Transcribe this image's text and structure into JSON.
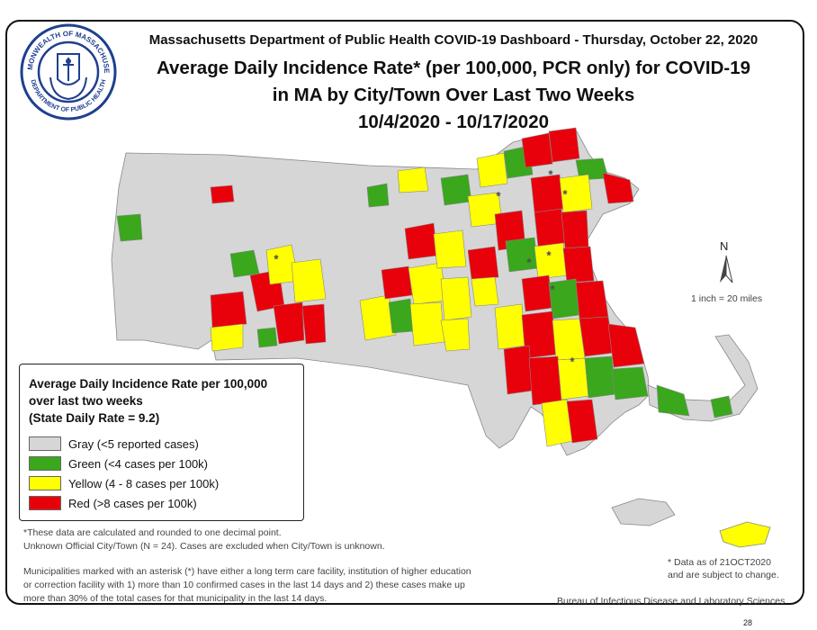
{
  "header": {
    "dashboard_line": "Massachusetts Department of Public Health COVID-19 Dashboard - Thursday, October 22, 2020",
    "title_line1": "Average Daily Incidence Rate* (per 100,000, PCR only) for COVID-19",
    "title_line2": "in MA by City/Town Over Last Two Weeks",
    "title_line3": "10/4/2020 - 10/17/2020"
  },
  "seal": {
    "ring_top": "COMMONWEALTH OF MASSACHUSETTS",
    "ring_bottom": "DEPARTMENT OF PUBLIC HEALTH",
    "color": "#1f3f8f"
  },
  "legend": {
    "title_line1": "Average Daily Incidence Rate per 100,000",
    "title_line2": "over last two weeks",
    "title_line3": "(State Daily Rate = 9.2)",
    "items": [
      {
        "label": "Gray (<5 reported cases)",
        "color": "#d6d6d6"
      },
      {
        "label": "Green (<4 cases per 100k)",
        "color": "#3aa71d"
      },
      {
        "label": "Yellow (4 - 8 cases per 100k)",
        "color": "#ffff00"
      },
      {
        "label": "Red (>8 cases per 100k)",
        "color": "#e8000b"
      }
    ]
  },
  "notes": {
    "line1": "*These data are calculated and rounded to one decimal point.",
    "line2": "Unknown Official City/Town (N = 24). Cases are excluded when City/Town is unknown.",
    "asterisk1": "Municipalities marked with an asterisk (*) have either a long term care facility, institution of higher education",
    "asterisk2": "or correction facility with 1) more than 10 confirmed cases in the last 14 days and 2) these cases make up",
    "asterisk3": "more than 30% of the total cases for that municipality in the last 14 days."
  },
  "compass": {
    "label": "N",
    "icon": "north-arrow-icon"
  },
  "scale_text": "1 inch = 20 miles",
  "data_as_of": {
    "line1": "* Data as of  21OCT2020",
    "line2": "and are subject to change."
  },
  "bureau": "Bureau of Infectious Disease and Laboratory Sciences",
  "page_number": "28",
  "colors": {
    "gray": "#d6d6d6",
    "green": "#3aa71d",
    "yellow": "#ffff00",
    "red": "#e8000b",
    "border": "#888888"
  }
}
